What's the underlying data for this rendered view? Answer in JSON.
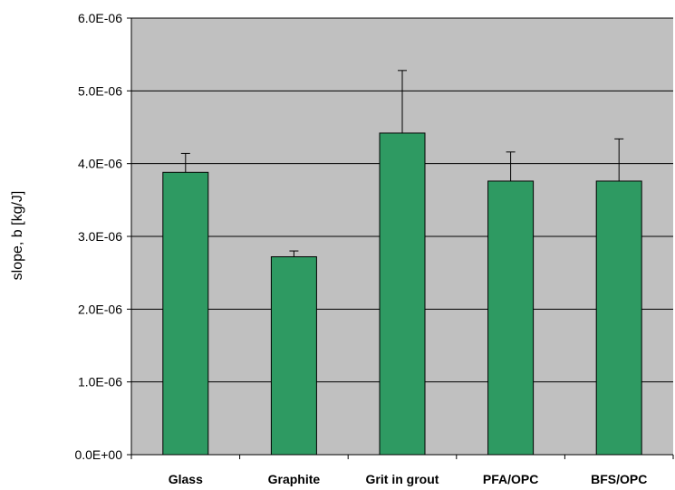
{
  "chart_data": {
    "type": "bar",
    "title": "",
    "xlabel": "",
    "ylabel": "slope, b [kg/J]",
    "categories": [
      "Glass",
      "Graphite",
      "Grit in grout",
      "PFA/OPC",
      "BFS/OPC"
    ],
    "values": [
      3.88e-06,
      2.72e-06,
      4.42e-06,
      3.76e-06,
      3.76e-06
    ],
    "error_upper": [
      2.6e-07,
      8e-08,
      8.6e-07,
      4e-07,
      5.8e-07
    ],
    "ylim": [
      0,
      6e-06
    ],
    "yticks": [
      0,
      1e-06,
      2e-06,
      3e-06,
      4e-06,
      5e-06,
      6e-06
    ],
    "ytick_labels": [
      "0.0E+00",
      "1.0E-06",
      "2.0E-06",
      "3.0E-06",
      "4.0E-06",
      "5.0E-06",
      "6.0E-06"
    ],
    "grid": "horizontal",
    "legend": "none",
    "colors": {
      "bar": "#2e9a62",
      "bar_edge": "#000000",
      "plot_background": "#c0c0c0",
      "gridline": "#000000"
    }
  }
}
